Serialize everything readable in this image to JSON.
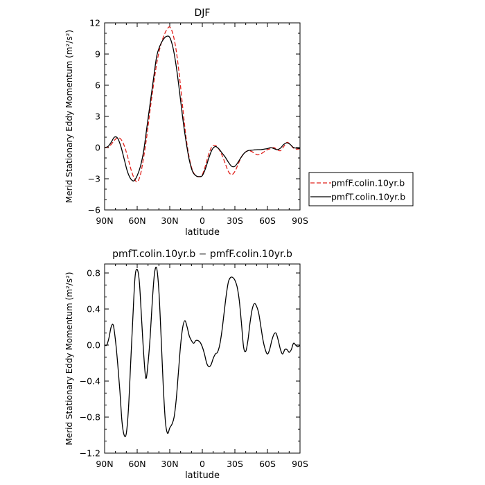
{
  "chart_data": [
    {
      "type": "line",
      "title": "DJF",
      "xlabel": "latitude",
      "ylabel": "Merid Stationary Eddy Momentum (m²/s²)",
      "xlim": [
        90,
        -90
      ],
      "ylim": [
        -6,
        12
      ],
      "x_ticks": [
        90,
        60,
        30,
        0,
        -30,
        -60,
        -90
      ],
      "x_tick_labels": [
        "90N",
        "60N",
        "30N",
        "0",
        "30S",
        "60S",
        "90S"
      ],
      "y_ticks": [
        -6,
        -3,
        0,
        3,
        6,
        9,
        12
      ],
      "y_tick_labels": [
        "−6",
        "−3",
        "0",
        "3",
        "6",
        "9",
        "12"
      ],
      "legend": {
        "placement": "right",
        "entries": [
          "pmfF.colin.10yr.b",
          "pmfT.colin.10yr.b"
        ]
      },
      "series": [
        {
          "name": "pmfF.colin.10yr.b",
          "color": "#e0201b",
          "dash": "dashed",
          "x": [
            90,
            87,
            84,
            81,
            78,
            75,
            72,
            69,
            66,
            63,
            60,
            57,
            54,
            51,
            48,
            45,
            42,
            39,
            36,
            33,
            30,
            27,
            24,
            21,
            18,
            15,
            12,
            9,
            6,
            3,
            0,
            -3,
            -6,
            -9,
            -12,
            -15,
            -18,
            -21,
            -24,
            -27,
            -30,
            -33,
            -36,
            -39,
            -42,
            -45,
            -48,
            -51,
            -54,
            -57,
            -60,
            -63,
            -66,
            -69,
            -72,
            -75,
            -78,
            -81,
            -84,
            -87,
            -90
          ],
          "y": [
            0,
            0.05,
            0.3,
            0.7,
            0.95,
            0.8,
            0.2,
            -0.8,
            -2.0,
            -2.9,
            -3.3,
            -2.6,
            -0.9,
            1.2,
            3.7,
            6.0,
            8.1,
            9.6,
            10.6,
            11.3,
            11.6,
            10.9,
            9.3,
            6.8,
            3.8,
            1.0,
            -1.0,
            -2.2,
            -2.7,
            -2.8,
            -2.6,
            -1.7,
            -0.6,
            0.1,
            0.2,
            -0.1,
            -0.7,
            -1.5,
            -2.3,
            -2.6,
            -2.3,
            -1.6,
            -0.9,
            -0.5,
            -0.3,
            -0.35,
            -0.55,
            -0.7,
            -0.6,
            -0.4,
            -0.2,
            -0.1,
            0.0,
            -0.2,
            -0.3,
            0.1,
            0.5,
            0.3,
            -0.05,
            -0.15,
            -0.1
          ]
        },
        {
          "name": "pmfT.colin.10yr.b",
          "color": "#000000",
          "dash": "solid",
          "x": [
            90,
            87,
            84,
            81,
            78,
            75,
            72,
            69,
            66,
            63,
            60,
            57,
            54,
            51,
            48,
            45,
            42,
            39,
            36,
            33,
            30,
            27,
            24,
            21,
            18,
            15,
            12,
            9,
            6,
            3,
            0,
            -3,
            -6,
            -9,
            -12,
            -15,
            -18,
            -21,
            -24,
            -27,
            -30,
            -33,
            -36,
            -39,
            -42,
            -45,
            -48,
            -51,
            -54,
            -57,
            -60,
            -63,
            -66,
            -69,
            -72,
            -75,
            -78,
            -81,
            -84,
            -87,
            -90
          ],
          "y": [
            0,
            0.1,
            0.5,
            1.0,
            0.9,
            0.1,
            -1.1,
            -2.3,
            -3.0,
            -3.2,
            -2.7,
            -1.8,
            -0.3,
            2.0,
            4.3,
            6.6,
            8.8,
            9.8,
            10.4,
            10.7,
            10.6,
            9.6,
            7.8,
            5.4,
            2.8,
            0.6,
            -1.2,
            -2.3,
            -2.7,
            -2.8,
            -2.7,
            -2.0,
            -1.0,
            -0.2,
            0.1,
            -0.1,
            -0.5,
            -0.9,
            -1.4,
            -1.8,
            -1.8,
            -1.4,
            -0.9,
            -0.5,
            -0.3,
            -0.25,
            -0.22,
            -0.2,
            -0.2,
            -0.15,
            -0.1,
            0.0,
            -0.1,
            -0.2,
            -0.05,
            0.3,
            0.45,
            0.3,
            0.0,
            -0.05,
            -0.1
          ]
        }
      ]
    },
    {
      "type": "line",
      "title": "pmfT.colin.10yr.b − pmfF.colin.10yr.b",
      "xlabel": "latitude",
      "ylabel": "Merid Stationary Eddy Momentum (m²/s²)",
      "xlim": [
        90,
        -90
      ],
      "ylim": [
        -1.2,
        0.9
      ],
      "x_ticks": [
        90,
        60,
        30,
        0,
        -30,
        -60,
        -90
      ],
      "x_tick_labels": [
        "90N",
        "60N",
        "30N",
        "0",
        "30S",
        "60S",
        "90S"
      ],
      "y_ticks": [
        -1.2,
        -0.8,
        -0.4,
        0.0,
        0.4,
        0.8
      ],
      "y_tick_labels": [
        "−1.2",
        "−0.8",
        "−0.4",
        "0.0",
        "0.4",
        "0.8"
      ],
      "series": [
        {
          "color": "#000000",
          "dash": "solid",
          "x": [
            90,
            88,
            86,
            84,
            82,
            80,
            78,
            76,
            74,
            72,
            70,
            68,
            66,
            64,
            62,
            60,
            58,
            56,
            54,
            52,
            50,
            48,
            46,
            44,
            42,
            40,
            38,
            36,
            34,
            32,
            30,
            28,
            26,
            24,
            22,
            20,
            18,
            16,
            14,
            12,
            10,
            8,
            6,
            4,
            2,
            0,
            -2,
            -4,
            -6,
            -8,
            -10,
            -12,
            -14,
            -16,
            -18,
            -20,
            -22,
            -24,
            -26,
            -28,
            -30,
            -32,
            -34,
            -36,
            -38,
            -40,
            -42,
            -44,
            -46,
            -48,
            -50,
            -52,
            -54,
            -56,
            -58,
            -60,
            -62,
            -64,
            -66,
            -68,
            -70,
            -72,
            -74,
            -76,
            -78,
            -80,
            -82,
            -84,
            -86,
            -88,
            -90
          ],
          "y": [
            0.0,
            0.0,
            0.08,
            0.2,
            0.22,
            0.05,
            -0.2,
            -0.5,
            -0.85,
            -1.0,
            -0.98,
            -0.7,
            -0.2,
            0.3,
            0.75,
            0.84,
            0.7,
            0.3,
            -0.1,
            -0.37,
            -0.2,
            0.1,
            0.5,
            0.8,
            0.85,
            0.6,
            0.1,
            -0.45,
            -0.85,
            -0.98,
            -0.92,
            -0.88,
            -0.8,
            -0.6,
            -0.3,
            0.0,
            0.2,
            0.27,
            0.2,
            0.1,
            0.05,
            0.02,
            0.05,
            0.05,
            0.03,
            -0.02,
            -0.1,
            -0.2,
            -0.24,
            -0.22,
            -0.15,
            -0.1,
            -0.08,
            0.0,
            0.15,
            0.35,
            0.55,
            0.7,
            0.75,
            0.75,
            0.72,
            0.65,
            0.5,
            0.25,
            -0.02,
            -0.07,
            0.05,
            0.25,
            0.4,
            0.46,
            0.43,
            0.35,
            0.2,
            0.05,
            -0.05,
            -0.1,
            -0.05,
            0.05,
            0.12,
            0.13,
            0.05,
            -0.05,
            -0.1,
            -0.05,
            -0.05,
            -0.08,
            -0.05,
            0.02,
            0.0,
            -0.02,
            0.0
          ]
        }
      ]
    }
  ]
}
